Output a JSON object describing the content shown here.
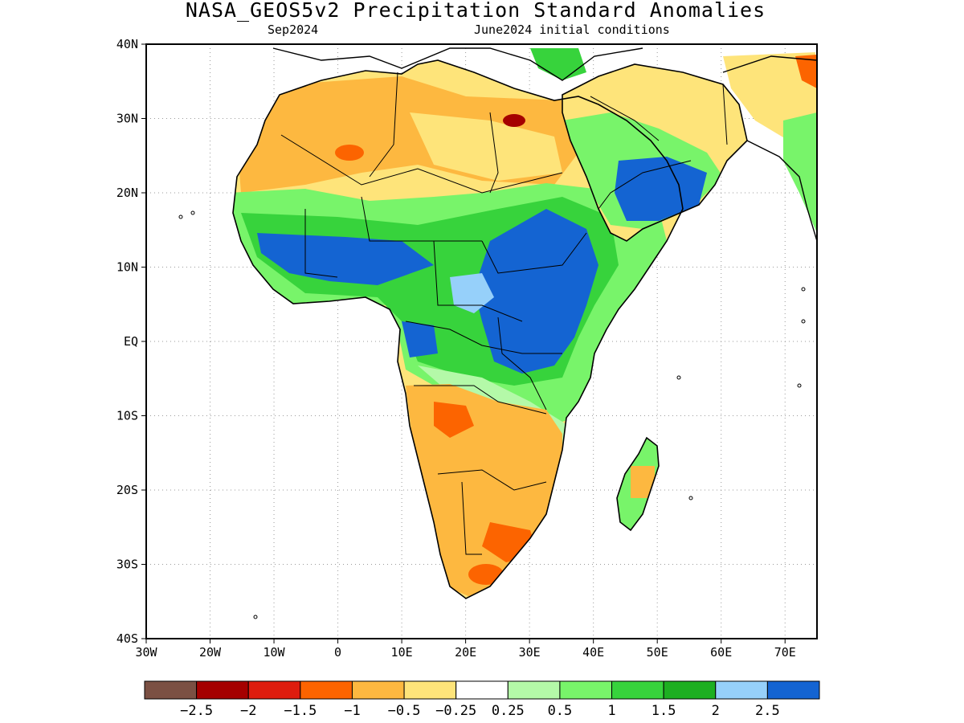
{
  "title": "NASA_GEOS5v2 Precipitation Standard Anomalies",
  "subtitle_left": "Sep2024",
  "subtitle_right": "June2024 initial conditions",
  "map": {
    "lon_range": [
      -30,
      75
    ],
    "lat_range": [
      -40,
      40
    ],
    "x_ticks": [
      {
        "lon": -30,
        "label": "30W"
      },
      {
        "lon": -20,
        "label": "20W"
      },
      {
        "lon": -10,
        "label": "10W"
      },
      {
        "lon": 0,
        "label": "0"
      },
      {
        "lon": 10,
        "label": "10E"
      },
      {
        "lon": 20,
        "label": "20E"
      },
      {
        "lon": 30,
        "label": "30E"
      },
      {
        "lon": 40,
        "label": "40E"
      },
      {
        "lon": 50,
        "label": "50E"
      },
      {
        "lon": 60,
        "label": "60E"
      },
      {
        "lon": 70,
        "label": "70E"
      }
    ],
    "y_ticks": [
      {
        "lat": 40,
        "label": "40N"
      },
      {
        "lat": 30,
        "label": "30N"
      },
      {
        "lat": 20,
        "label": "20N"
      },
      {
        "lat": 10,
        "label": "10N"
      },
      {
        "lat": 0,
        "label": "EQ"
      },
      {
        "lat": -10,
        "label": "10S"
      },
      {
        "lat": -20,
        "label": "20S"
      },
      {
        "lat": -30,
        "label": "30S"
      },
      {
        "lat": -40,
        "label": "40S"
      }
    ],
    "grid": "dotted"
  },
  "colorbar": {
    "colors": [
      "#7b5043",
      "#a50000",
      "#de1c0e",
      "#fc6400",
      "#fdb840",
      "#fee47a",
      "#ffffff",
      "#b4f9a8",
      "#78f46a",
      "#37d33c",
      "#1daf21",
      "#96d0fa",
      "#1464d2"
    ],
    "labels": [
      "−2.5",
      "−2",
      "−1.5",
      "−1",
      "−0.5",
      "−0.25",
      "0.25",
      "0.5",
      "1",
      "1.5",
      "2",
      "2.5"
    ]
  },
  "anomaly_regions": [
    {
      "name": "north-africa-dry",
      "level": -0.5
    },
    {
      "name": "sahara-moderate-dry",
      "level": -0.25
    },
    {
      "name": "sahel-wet",
      "level": 1
    },
    {
      "name": "sahel-very-wet",
      "level": 2.5
    },
    {
      "name": "ethiopia-sudan-very-wet",
      "level": 2.5
    },
    {
      "name": "arabia-very-wet",
      "level": 2.5
    },
    {
      "name": "congo-wet",
      "level": 1
    },
    {
      "name": "east-africa-wet",
      "level": 0.5
    },
    {
      "name": "southern-africa-dry",
      "level": -0.5
    },
    {
      "name": "south-africa-drier",
      "level": -1
    },
    {
      "name": "madagascar-mixed",
      "level": 0.5
    }
  ]
}
